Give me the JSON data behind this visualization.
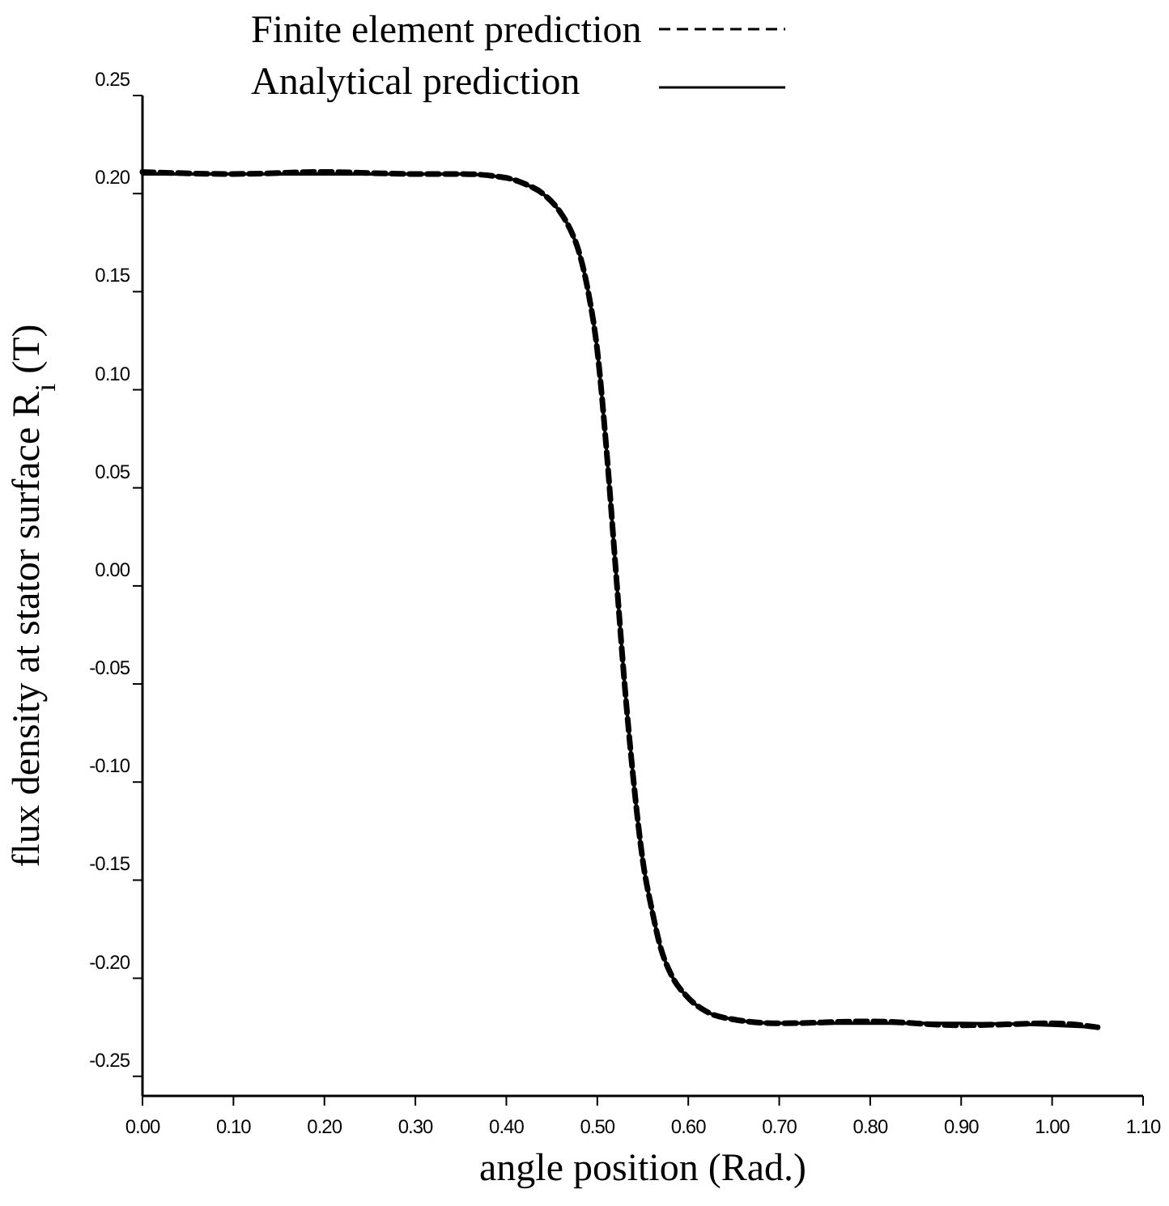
{
  "chart_data": {
    "type": "line",
    "xlabel": "angle position (Rad.)",
    "ylabel": "flux density at stator surface R$_{i}$ (T)",
    "xlim": [
      0,
      1.1
    ],
    "ylim": [
      -0.26,
      0.25
    ],
    "xticks": [
      {
        "value": 0,
        "label": "0.00"
      },
      {
        "value": 0.1,
        "label": "0.10"
      },
      {
        "value": 0.2,
        "label": "0.20"
      },
      {
        "value": 0.3,
        "label": "0.30"
      },
      {
        "value": 0.4,
        "label": "0.40"
      },
      {
        "value": 0.5,
        "label": "0.50"
      },
      {
        "value": 0.6,
        "label": "0.60"
      },
      {
        "value": 0.7,
        "label": "0.70"
      },
      {
        "value": 0.8,
        "label": "0.80"
      },
      {
        "value": 0.9,
        "label": "0.90"
      },
      {
        "value": 1,
        "label": "1.00"
      },
      {
        "value": 1.1,
        "label": "1.10"
      }
    ],
    "yticks": [
      {
        "value": 0.25,
        "label": "0.25"
      },
      {
        "value": 0.2,
        "label": "0.20"
      },
      {
        "value": 0.15,
        "label": "0.15"
      },
      {
        "value": 0.1,
        "label": "0.10"
      },
      {
        "value": 0.05,
        "label": "0.05"
      },
      {
        "value": 0,
        "label": "0.00"
      },
      {
        "value": -0.05,
        "label": "-0.05"
      },
      {
        "value": -0.1,
        "label": "-0.10"
      },
      {
        "value": -0.15,
        "label": "-0.15"
      },
      {
        "value": -0.2,
        "label": "-0.20"
      },
      {
        "value": -0.25,
        "label": "-0.25"
      }
    ],
    "legend": "top",
    "grid": false,
    "marker": "none",
    "x": [
      0,
      0.1,
      0.2,
      0.3,
      0.35,
      0.4,
      0.42,
      0.44,
      0.46,
      0.47,
      0.48,
      0.49,
      0.5,
      0.51,
      0.52,
      0.53,
      0.54,
      0.55,
      0.56,
      0.57,
      0.58,
      0.6,
      0.62,
      0.65,
      0.7,
      0.8,
      0.9,
      1.0,
      1.05
    ],
    "series": [
      {
        "name": "Finite element prediction",
        "color": "#000000",
        "line_style": "dashed",
        "values": [
          0.211,
          0.21,
          0.211,
          0.21,
          0.21,
          0.208,
          0.205,
          0.2,
          0.19,
          0.182,
          0.17,
          0.15,
          0.12,
          0.07,
          0.01,
          -0.05,
          -0.1,
          -0.14,
          -0.165,
          -0.185,
          -0.197,
          -0.21,
          -0.217,
          -0.221,
          -0.223,
          -0.222,
          -0.224,
          -0.223,
          -0.225
        ]
      },
      {
        "name": "Analytical prediction",
        "color": "#000000",
        "line_style": "solid",
        "values": [
          0.21,
          0.21,
          0.21,
          0.21,
          0.21,
          0.208,
          0.205,
          0.2,
          0.19,
          0.182,
          0.17,
          0.15,
          0.12,
          0.07,
          0.01,
          -0.05,
          -0.1,
          -0.14,
          -0.165,
          -0.185,
          -0.197,
          -0.21,
          -0.217,
          -0.221,
          -0.223,
          -0.223,
          -0.223,
          -0.224,
          -0.225
        ]
      }
    ]
  }
}
